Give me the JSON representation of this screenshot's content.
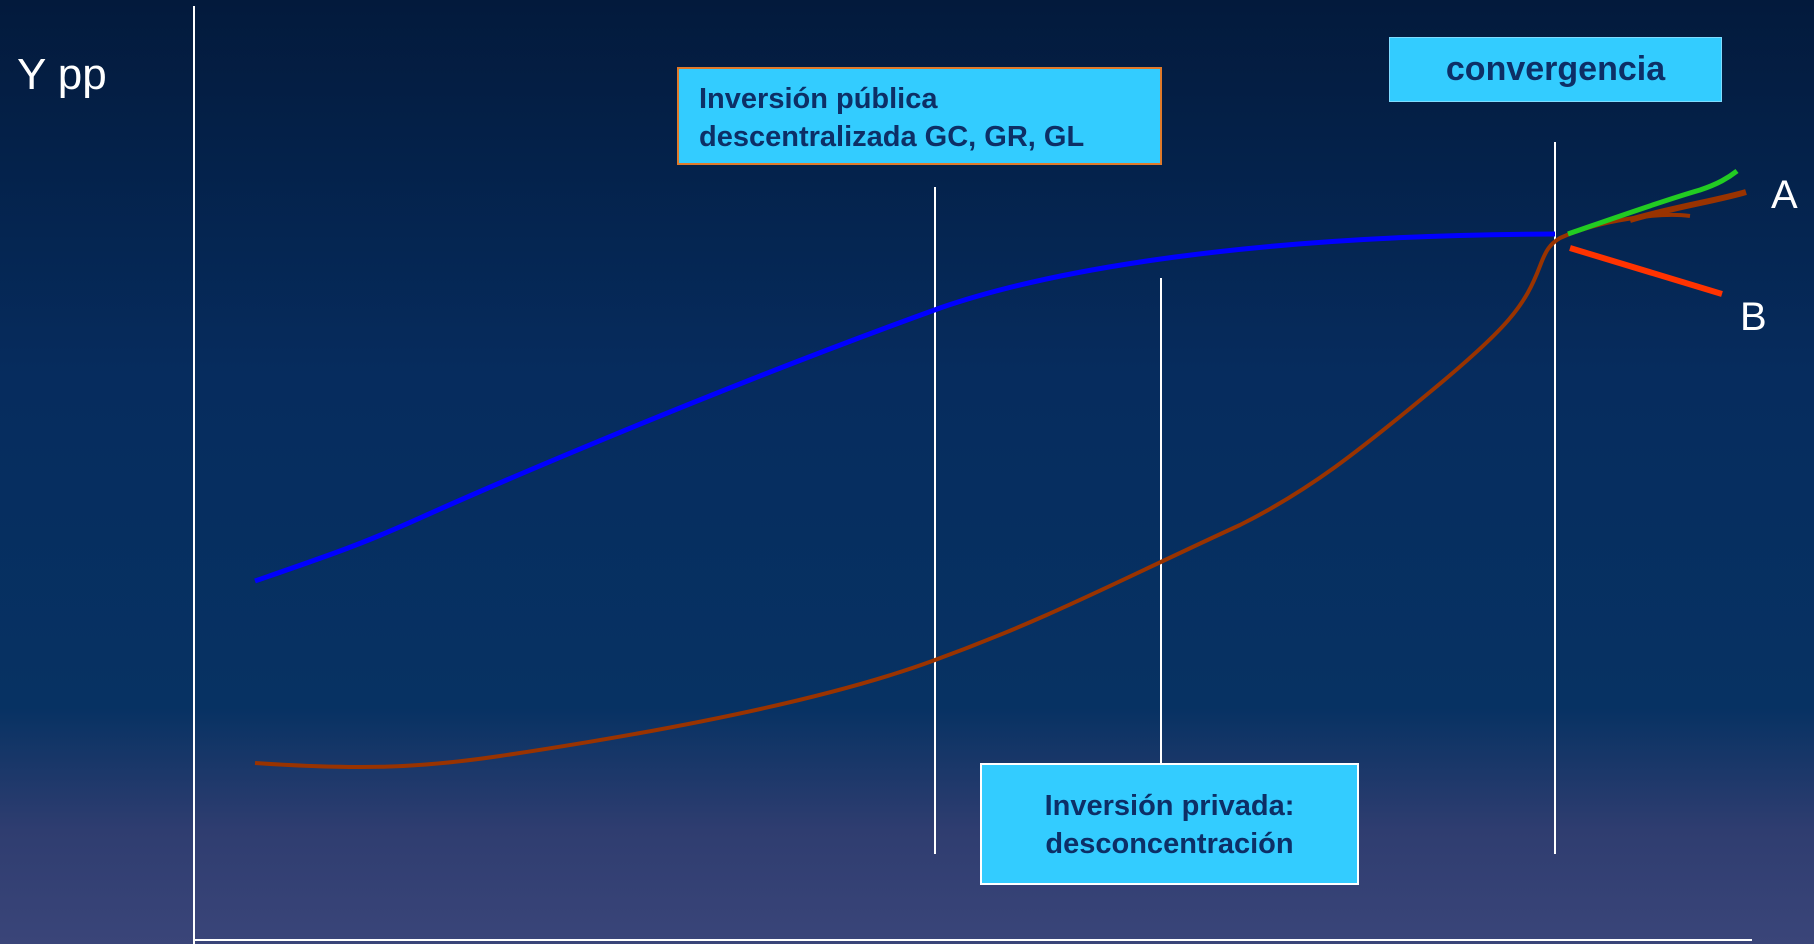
{
  "axis": {
    "y_label": "Y pp"
  },
  "boxes": {
    "public_investment": {
      "line1": "Inversión pública",
      "line2": "descentralizada GC, GR, GL"
    },
    "convergence": {
      "label": "convergencia"
    },
    "private_investment": {
      "line1": "Inversión privada:",
      "line2": "desconcentración"
    }
  },
  "curves": {
    "public_color": "#0000ff",
    "private_color": "#993300",
    "scenario_a_color": "#22cc22",
    "scenario_b_color": "#ff3300"
  },
  "labels": {
    "a": "A",
    "b": "B"
  }
}
